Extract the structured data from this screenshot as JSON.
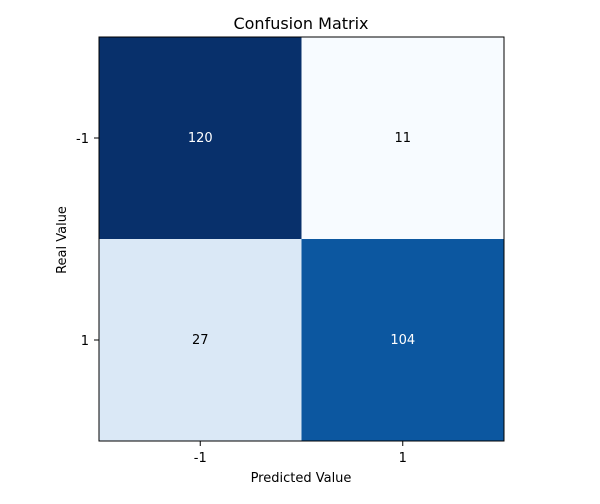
{
  "chart_data": {
    "type": "heatmap",
    "title": "Confusion Matrix",
    "xlabel": "Predicted Value",
    "ylabel": "Real Value",
    "x_categories": [
      "-1",
      "1"
    ],
    "y_categories": [
      "-1",
      "1"
    ],
    "values": [
      [
        120,
        11
      ],
      [
        27,
        104
      ]
    ],
    "colormap": "Blues",
    "vmin": 11,
    "vmax": 120,
    "grid": false,
    "legend": "none"
  }
}
